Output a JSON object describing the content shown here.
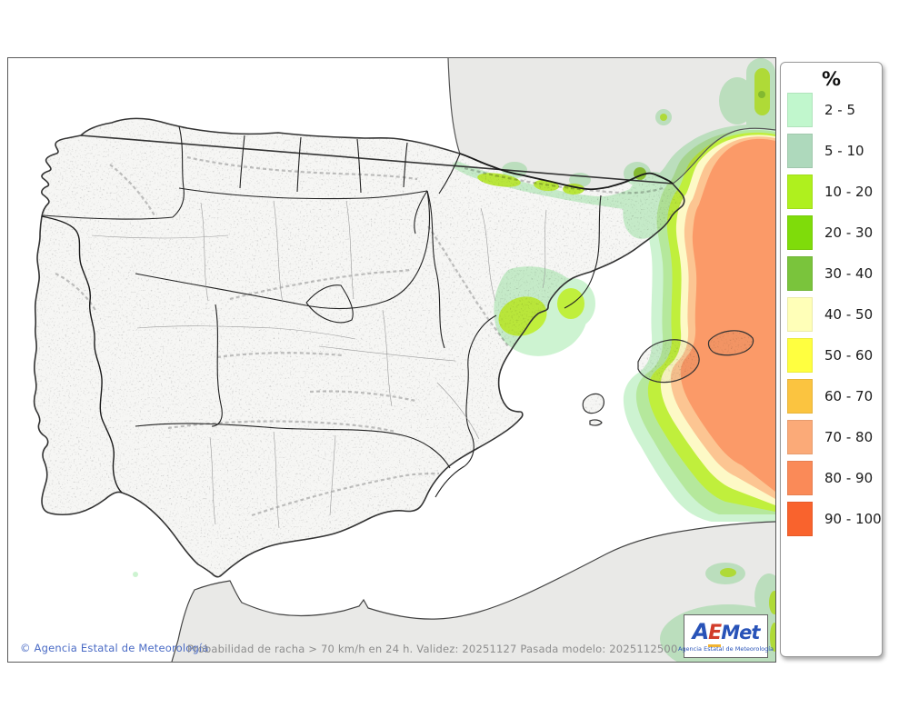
{
  "map": {
    "attribution": "© Agencia Estatal de Meteorología",
    "caption": "Probabilidad de racha > 70 km/h en 24 h. Validez: 20251127 Pasada modelo: 2025112500"
  },
  "legend": {
    "title": "%",
    "items": [
      {
        "label": "2 - 5",
        "color": "#c1f7cd"
      },
      {
        "label": "5 - 10",
        "color": "#aed9bc"
      },
      {
        "label": "10 - 20",
        "color": "#aff01e"
      },
      {
        "label": "20 - 30",
        "color": "#7fdc0a"
      },
      {
        "label": "30 - 40",
        "color": "#7ac43c"
      },
      {
        "label": "40 - 50",
        "color": "#ffffb8"
      },
      {
        "label": "50 - 60",
        "color": "#ffff40"
      },
      {
        "label": "60 - 70",
        "color": "#fbc440"
      },
      {
        "label": "70 - 80",
        "color": "#fbaa78"
      },
      {
        "label": "80 - 90",
        "color": "#fa8a58"
      },
      {
        "label": "90 - 100",
        "color": "#f9632d"
      }
    ]
  },
  "overlay": {
    "mint": "#cdf3d1",
    "green": "#b5e89c",
    "chartreuse": "#c0ef3c",
    "olive": "#8fca35",
    "cream": "#fdf9c6",
    "peach": "#fcc592",
    "salmon": "#fb9a68",
    "sea": "#ffffff",
    "relief_land": "#f6f6f4",
    "flat_land": "#e9e9e7"
  },
  "logo": {
    "part_a": "A",
    "part_e": "E",
    "part_met": "Met",
    "subtitle": "Agencia Estatal de Meteorología"
  }
}
